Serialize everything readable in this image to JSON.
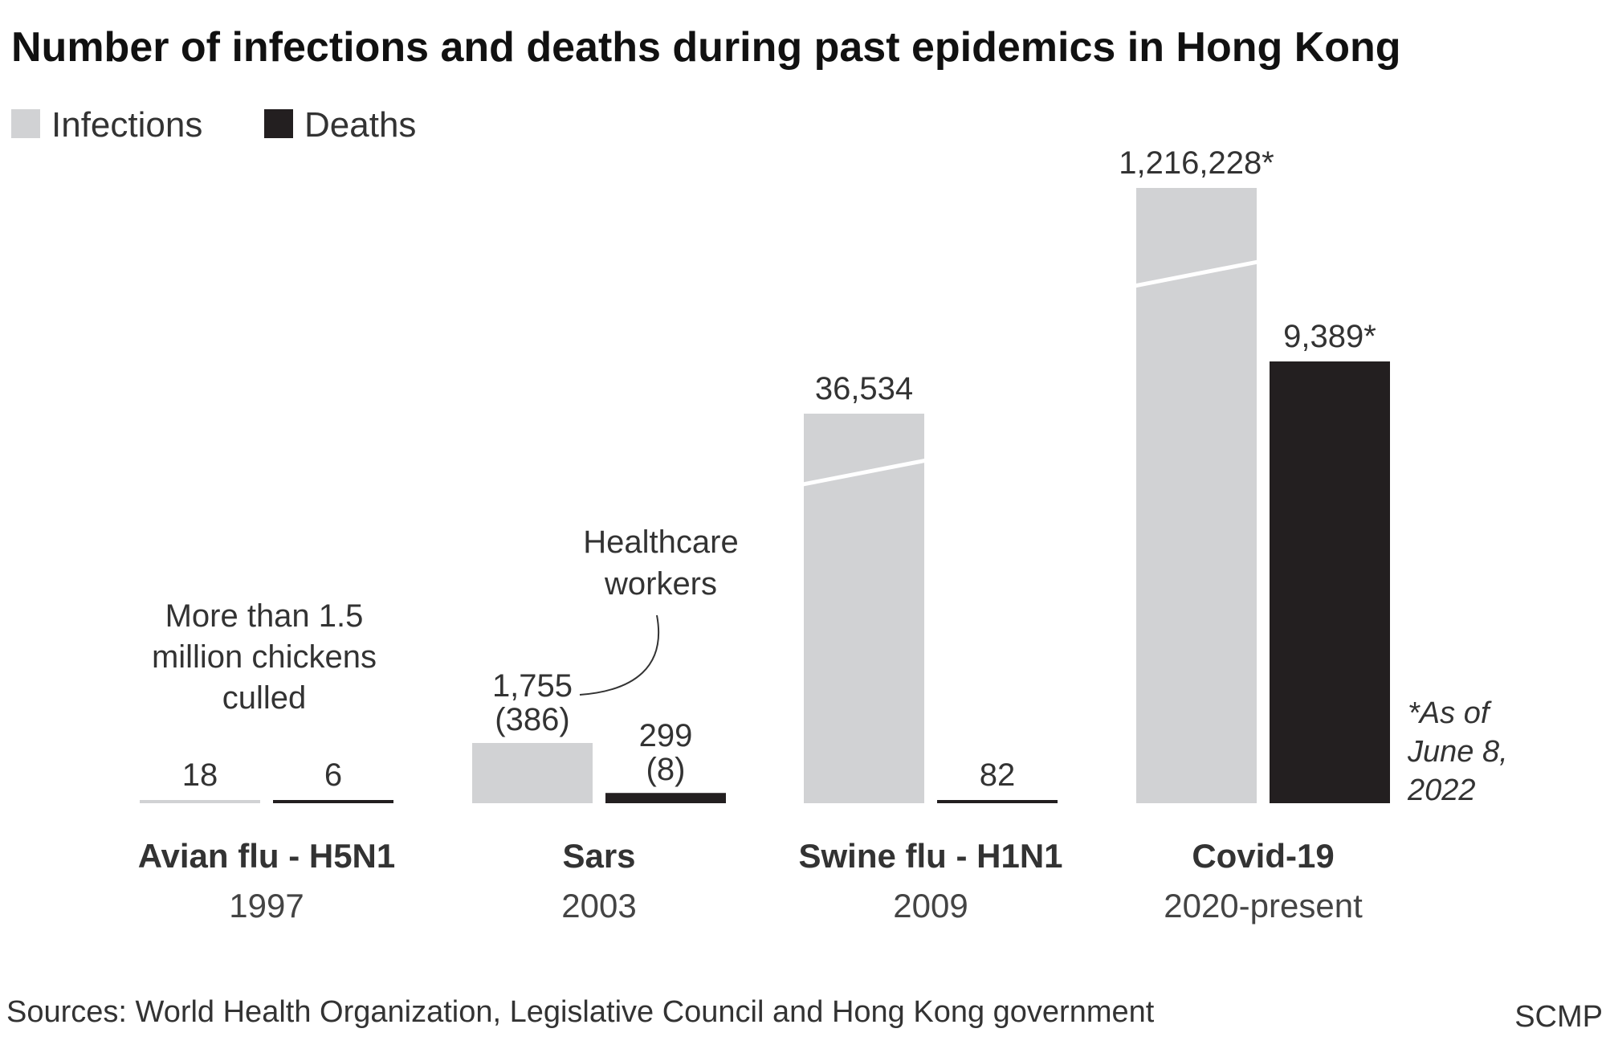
{
  "title": "Number of infections and deaths during past epidemics in Hong Kong",
  "legend": [
    {
      "label": "Infections",
      "color": "#d1d2d4"
    },
    {
      "label": "Deaths",
      "color": "#231f20"
    }
  ],
  "chart_data": {
    "type": "bar",
    "title": "Number of infections and deaths during past epidemics in Hong Kong",
    "axis_scale": "broken (non-linear, with axis breaks on tall bars)",
    "grid": false,
    "legend_position": "top-left",
    "categories": [
      {
        "name": "Avian flu - H5N1",
        "period": "1997"
      },
      {
        "name": "Sars",
        "period": "2003"
      },
      {
        "name": "Swine flu - H1N1",
        "period": "2009"
      },
      {
        "name": "Covid-19",
        "period": "2020-present"
      }
    ],
    "series": [
      {
        "name": "Infections",
        "color": "#d1d2d4",
        "values": [
          18,
          1755,
          36534,
          1216228
        ],
        "labels": [
          "18",
          "1,755",
          "36,534",
          "1,216,228*"
        ],
        "sub_labels": [
          null,
          "(386)",
          null,
          null
        ],
        "broken": [
          false,
          false,
          true,
          true
        ]
      },
      {
        "name": "Deaths",
        "color": "#231f20",
        "values": [
          6,
          299,
          82,
          9389
        ],
        "labels": [
          "6",
          "299",
          "82",
          "9,389*"
        ],
        "sub_labels": [
          null,
          "(8)",
          null,
          null
        ],
        "broken": [
          false,
          false,
          false,
          false
        ]
      }
    ],
    "annotations": [
      {
        "id": "avian-note",
        "lines": [
          "More than 1.5",
          "million chickens",
          "culled"
        ]
      },
      {
        "id": "healthcare-note",
        "lines": [
          "Healthcare",
          "workers"
        ]
      }
    ],
    "footnote": [
      "*As of",
      "June 8,",
      "2022"
    ]
  },
  "footer": {
    "sources": "Sources: World Health Organization, Legislative Council and Hong Kong government",
    "brand": "SCMP"
  }
}
